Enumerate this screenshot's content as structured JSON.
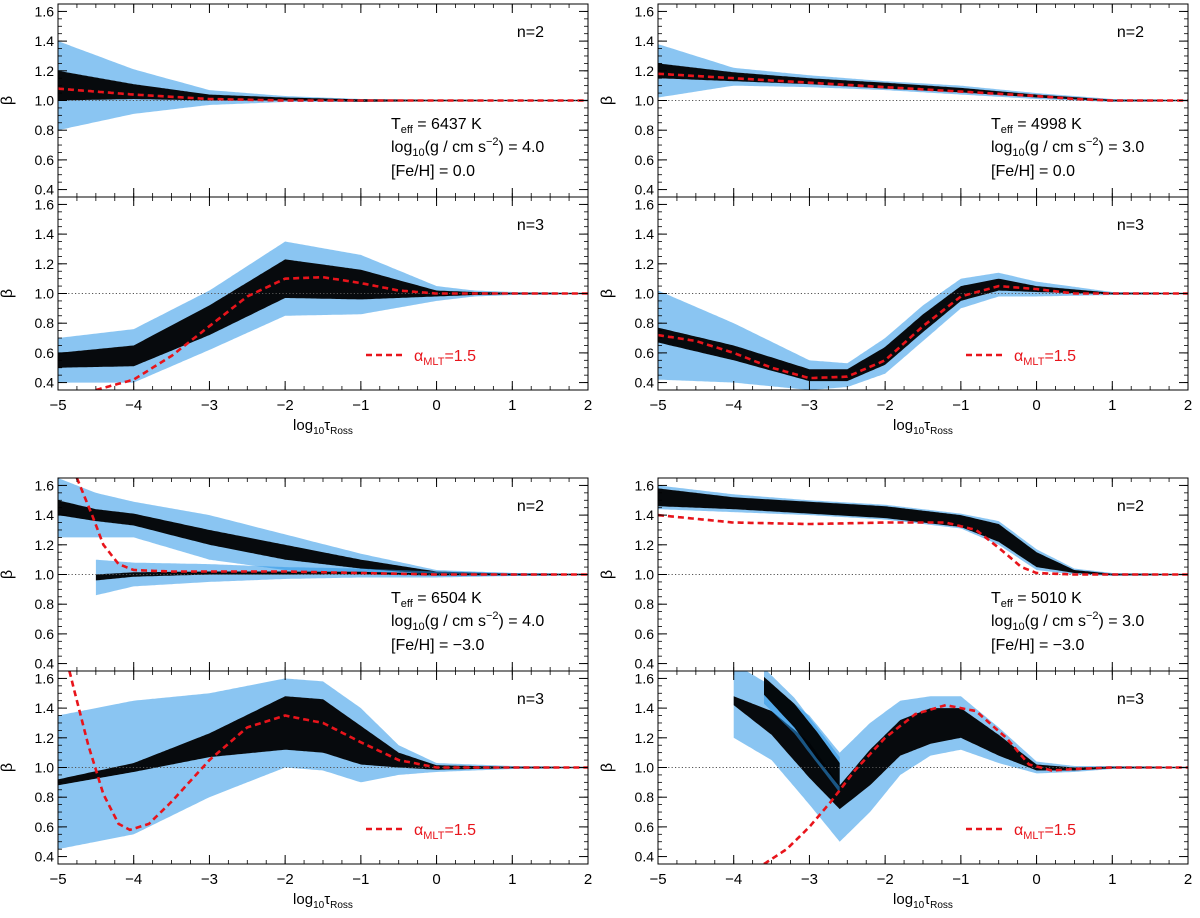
{
  "figure": {
    "ylabel": "β",
    "xlabel_base": "log",
    "xlabel_sub": "10",
    "xlabel_tau": "τ",
    "xlabel_tau_sub": "Ross",
    "dashed_legend": {
      "prefix": "α",
      "sub": "MLT",
      "suffix": "=1.5",
      "color": "#e8141b"
    },
    "density_color": "#2a95e8",
    "core_color": "#000000",
    "reference_value": 1.0
  },
  "chart_data": [
    {
      "type": "heatmap",
      "title": "Teff 6437 K, logg 4.0, [Fe/H] 0.0",
      "stellar": {
        "teff": "= 6437 K",
        "logg": "(g / cm s",
        "logg_exp": "−2",
        "logg_val": ") = 4.0",
        "feh": "[Fe/H] =  0.0"
      },
      "xlim": [
        -5,
        2
      ],
      "ylim": [
        0.35,
        1.65
      ],
      "xticks": [
        -5,
        -4,
        -3,
        -2,
        -1,
        0,
        1,
        2
      ],
      "xtick_labels": [
        "−5",
        "−4",
        "−3",
        "−2",
        "−1",
        "0",
        "1",
        "2"
      ],
      "yticks": [
        0.4,
        0.6,
        0.8,
        1.0,
        1.2,
        1.4,
        1.6
      ],
      "ytick_labels": [
        "0.4",
        "0.6",
        "0.8",
        "1.0",
        "1.2",
        "1.4",
        "1.6"
      ],
      "panels": [
        {
          "label": "n=2",
          "dashed": {
            "x": [
              -5,
              -4,
              -3,
              -2,
              -1,
              0,
              1,
              2
            ],
            "y": [
              1.08,
              1.04,
              1.01,
              1.0,
              1.0,
              1.0,
              1.0,
              1.0
            ]
          },
          "cloud": [
            {
              "x": [
                -5,
                -4,
                -3,
                -2,
                -1,
                0,
                1,
                2
              ],
              "center": [
                1.1,
                1.06,
                1.02,
                1.01,
                1.0,
                1.0,
                1.0,
                1.0
              ],
              "spread": [
                0.3,
                0.15,
                0.05,
                0.02,
                0.01,
                0.005,
                0.005,
                0.005
              ],
              "core": [
                0.1,
                0.05,
                0.02,
                0.01,
                0.008,
                0.005,
                0.004,
                0.004
              ]
            }
          ]
        },
        {
          "label": "n=3",
          "dashed": {
            "x": [
              -4.5,
              -4,
              -3.5,
              -3,
              -2.5,
              -2,
              -1.5,
              -1,
              -0.5,
              0,
              0.5,
              1,
              1.5,
              2
            ],
            "y": [
              0.35,
              0.42,
              0.58,
              0.78,
              0.98,
              1.1,
              1.11,
              1.07,
              1.02,
              1.0,
              1.0,
              1.0,
              1.0,
              1.0
            ]
          },
          "cloud": [
            {
              "x": [
                -5,
                -4,
                -3,
                -2,
                -1,
                0,
                0.5,
                1,
                2
              ],
              "center": [
                0.55,
                0.58,
                0.82,
                1.1,
                1.06,
                1.0,
                1.0,
                1.0,
                1.0
              ],
              "spread": [
                0.15,
                0.18,
                0.2,
                0.25,
                0.2,
                0.05,
                0.02,
                0.01,
                0.005
              ],
              "core": [
                0.05,
                0.07,
                0.1,
                0.13,
                0.1,
                0.02,
                0.01,
                0.005,
                0.004
              ]
            }
          ]
        }
      ]
    },
    {
      "type": "heatmap",
      "title": "Teff 4998 K, logg 3.0, [Fe/H] 0.0",
      "stellar": {
        "teff": "= 4998 K",
        "logg": "(g / cm s",
        "logg_exp": "−2",
        "logg_val": ") = 3.0",
        "feh": "[Fe/H] =  0.0"
      },
      "xlim": [
        -5,
        2
      ],
      "ylim": [
        0.35,
        1.65
      ],
      "xticks": [
        -5,
        -4,
        -3,
        -2,
        -1,
        0,
        1,
        2
      ],
      "xtick_labels": [
        "−5",
        "−4",
        "−3",
        "−2",
        "−1",
        "0",
        "1",
        "2"
      ],
      "yticks": [
        0.4,
        0.6,
        0.8,
        1.0,
        1.2,
        1.4,
        1.6
      ],
      "ytick_labels": [
        "0.4",
        "0.6",
        "0.8",
        "1.0",
        "1.2",
        "1.4",
        "1.6"
      ],
      "panels": [
        {
          "label": "n=2",
          "dashed": {
            "x": [
              -5,
              -4,
              -3,
              -2,
              -1,
              0,
              0.5,
              1,
              2
            ],
            "y": [
              1.18,
              1.15,
              1.12,
              1.09,
              1.06,
              1.03,
              1.01,
              1.0,
              1.0
            ]
          },
          "cloud": [
            {
              "x": [
                -5,
                -4,
                -3,
                -2,
                -1,
                0,
                1,
                2
              ],
              "center": [
                1.2,
                1.16,
                1.13,
                1.1,
                1.07,
                1.03,
                1.0,
                1.0
              ],
              "spread": [
                0.18,
                0.06,
                0.04,
                0.03,
                0.03,
                0.02,
                0.01,
                0.005
              ],
              "core": [
                0.05,
                0.03,
                0.02,
                0.02,
                0.015,
                0.01,
                0.005,
                0.004
              ]
            }
          ]
        },
        {
          "label": "n=3",
          "dashed": {
            "x": [
              -5,
              -4.5,
              -4,
              -3.5,
              -3,
              -2.5,
              -2,
              -1.5,
              -1,
              -0.5,
              0,
              0.5,
              1,
              1.5,
              2
            ],
            "y": [
              0.72,
              0.68,
              0.6,
              0.5,
              0.43,
              0.44,
              0.55,
              0.78,
              0.98,
              1.05,
              1.03,
              1.0,
              1.0,
              1.0,
              1.0
            ]
          },
          "cloud": [
            {
              "x": [
                -5,
                -4,
                -3,
                -2.5,
                -2,
                -1.5,
                -1,
                -0.5,
                0,
                1,
                2
              ],
              "center": [
                0.72,
                0.6,
                0.45,
                0.45,
                0.58,
                0.8,
                1.0,
                1.06,
                1.03,
                1.0,
                1.0
              ],
              "spread": [
                0.3,
                0.2,
                0.1,
                0.08,
                0.12,
                0.12,
                0.1,
                0.08,
                0.05,
                0.01,
                0.005
              ],
              "core": [
                0.05,
                0.05,
                0.04,
                0.04,
                0.06,
                0.06,
                0.05,
                0.04,
                0.02,
                0.005,
                0.004
              ]
            }
          ]
        }
      ]
    },
    {
      "type": "heatmap",
      "title": "Teff 6504 K, logg 4.0, [Fe/H] -3.0",
      "stellar": {
        "teff": "= 6504 K",
        "logg": "(g / cm s",
        "logg_exp": "−2",
        "logg_val": ") = 4.0",
        "feh": "[Fe/H] = −3.0"
      },
      "xlim": [
        -5,
        2
      ],
      "ylim": [
        0.35,
        1.65
      ],
      "xticks": [
        -5,
        -4,
        -3,
        -2,
        -1,
        0,
        1,
        2
      ],
      "xtick_labels": [
        "−5",
        "−4",
        "−3",
        "−2",
        "−1",
        "0",
        "1",
        "2"
      ],
      "yticks": [
        0.4,
        0.6,
        0.8,
        1.0,
        1.2,
        1.4,
        1.6
      ],
      "ytick_labels": [
        "0.4",
        "0.6",
        "0.8",
        "1.0",
        "1.2",
        "1.4",
        "1.6"
      ],
      "panels": [
        {
          "label": "n=2",
          "dashed": {
            "x": [
              -4.75,
              -4.55,
              -4.4,
              -4.2,
              -4.0,
              -3.5,
              -3,
              -2,
              -1,
              0,
              1,
              2
            ],
            "y": [
              1.65,
              1.4,
              1.2,
              1.07,
              1.03,
              1.02,
              1.02,
              1.02,
              1.01,
              1.0,
              1.0,
              1.0
            ]
          },
          "cloud": [
            {
              "x": [
                -5,
                -4.5,
                -4,
                -3,
                -2,
                -1,
                0,
                1,
                2
              ],
              "center": [
                1.45,
                1.4,
                1.37,
                1.25,
                1.15,
                1.07,
                1.01,
                1.0,
                1.0
              ],
              "spread": [
                0.2,
                0.15,
                0.12,
                0.15,
                0.12,
                0.07,
                0.02,
                0.01,
                0.005
              ],
              "core": [
                0.05,
                0.04,
                0.04,
                0.05,
                0.05,
                0.03,
                0.01,
                0.005,
                0.004
              ]
            },
            {
              "x": [
                -4.5,
                -4,
                -3,
                -2,
                -1,
                0,
                1,
                2
              ],
              "center": [
                0.98,
                1.0,
                1.01,
                1.01,
                1.01,
                1.0,
                1.0,
                1.0
              ],
              "spread": [
                0.12,
                0.08,
                0.06,
                0.04,
                0.03,
                0.02,
                0.01,
                0.005
              ],
              "core": [
                0.02,
                0.015,
                0.01,
                0.01,
                0.008,
                0.006,
                0.004,
                0.004
              ]
            }
          ]
        },
        {
          "label": "n=3",
          "dashed": {
            "x": [
              -4.85,
              -4.6,
              -4.4,
              -4.2,
              -4.05,
              -3.8,
              -3.5,
              -3,
              -2.5,
              -2,
              -1.5,
              -1,
              -0.5,
              0,
              0.5,
              1,
              2
            ],
            "y": [
              1.65,
              1.15,
              0.82,
              0.62,
              0.58,
              0.62,
              0.77,
              1.05,
              1.27,
              1.35,
              1.3,
              1.17,
              1.05,
              1.0,
              1.0,
              1.0,
              1.0
            ]
          },
          "cloud": [
            {
              "x": [
                -5,
                -4,
                -3,
                -2,
                -1.5,
                -1,
                -0.5,
                0,
                1,
                2
              ],
              "center": [
                0.9,
                1.0,
                1.15,
                1.3,
                1.28,
                1.15,
                1.05,
                1.0,
                1.0,
                1.0
              ],
              "spread": [
                0.45,
                0.45,
                0.35,
                0.3,
                0.3,
                0.25,
                0.1,
                0.03,
                0.01,
                0.005
              ],
              "core": [
                0.02,
                0.03,
                0.08,
                0.18,
                0.18,
                0.13,
                0.05,
                0.015,
                0.005,
                0.004
              ]
            }
          ]
        }
      ]
    },
    {
      "type": "heatmap",
      "title": "Teff 5010 K, logg 3.0, [Fe/H] -3.0",
      "stellar": {
        "teff": "= 5010 K",
        "logg": "(g / cm s",
        "logg_exp": "−2",
        "logg_val": ") = 3.0",
        "feh": "[Fe/H] = −3.0"
      },
      "xlim": [
        -5,
        2
      ],
      "ylim": [
        0.35,
        1.65
      ],
      "xticks": [
        -5,
        -4,
        -3,
        -2,
        -1,
        0,
        1,
        2
      ],
      "xtick_labels": [
        "−5",
        "−4",
        "−3",
        "−2",
        "−1",
        "0",
        "1",
        "2"
      ],
      "yticks": [
        0.4,
        0.6,
        0.8,
        1.0,
        1.2,
        1.4,
        1.6
      ],
      "ytick_labels": [
        "0.4",
        "0.6",
        "0.8",
        "1.0",
        "1.2",
        "1.4",
        "1.6"
      ],
      "panels": [
        {
          "label": "n=2",
          "dashed": {
            "x": [
              -5,
              -4,
              -3,
              -2,
              -1.2,
              -0.8,
              -0.5,
              -0.2,
              0,
              0.5,
              1,
              2
            ],
            "y": [
              1.4,
              1.35,
              1.34,
              1.35,
              1.35,
              1.3,
              1.18,
              1.05,
              1.01,
              1.0,
              1.0,
              1.0
            ]
          },
          "cloud": [
            {
              "x": [
                -5,
                -4,
                -3,
                -2,
                -1,
                -0.5,
                0,
                0.5,
                1,
                2
              ],
              "center": [
                1.52,
                1.48,
                1.45,
                1.42,
                1.36,
                1.28,
                1.1,
                1.02,
                1.0,
                1.0
              ],
              "spread": [
                0.08,
                0.06,
                0.05,
                0.05,
                0.05,
                0.08,
                0.07,
                0.02,
                0.01,
                0.005
              ],
              "core": [
                0.06,
                0.04,
                0.04,
                0.04,
                0.04,
                0.06,
                0.05,
                0.01,
                0.005,
                0.004
              ]
            }
          ]
        },
        {
          "label": "n=3",
          "dashed": {
            "x": [
              -3.6,
              -3.3,
              -3,
              -2.7,
              -2.4,
              -2,
              -1.6,
              -1.2,
              -0.8,
              -0.4,
              -0.1,
              0.2,
              0.5,
              1,
              1.5,
              2
            ],
            "y": [
              0.35,
              0.45,
              0.6,
              0.78,
              0.98,
              1.2,
              1.36,
              1.42,
              1.38,
              1.2,
              1.02,
              0.98,
              0.99,
              1.0,
              1.0,
              1.0
            ]
          },
          "cloud": [
            {
              "x": [
                -4,
                -3.5,
                -3,
                -2.6,
                -2.2,
                -1.8,
                -1.4,
                -1,
                -0.5,
                0,
                0.5,
                1,
                2
              ],
              "center": [
                1.45,
                1.3,
                1.05,
                0.8,
                1.0,
                1.2,
                1.28,
                1.3,
                1.15,
                1.0,
                0.99,
                1.0,
                1.0
              ],
              "spread": [
                0.25,
                0.25,
                0.3,
                0.3,
                0.3,
                0.25,
                0.2,
                0.18,
                0.12,
                0.04,
                0.02,
                0.01,
                0.005
              ],
              "core": [
                0.03,
                0.08,
                0.12,
                0.08,
                0.12,
                0.12,
                0.12,
                0.1,
                0.07,
                0.02,
                0.01,
                0.005,
                0.004
              ]
            },
            {
              "x": [
                -3.6,
                -3.2,
                -2.9,
                -2.6
              ],
              "center": [
                1.55,
                1.35,
                1.15,
                0.95
              ],
              "spread": [
                0.12,
                0.12,
                0.12,
                0.12
              ],
              "core": [
                0.06,
                0.08,
                0.09,
                0.08
              ]
            }
          ]
        }
      ]
    }
  ]
}
